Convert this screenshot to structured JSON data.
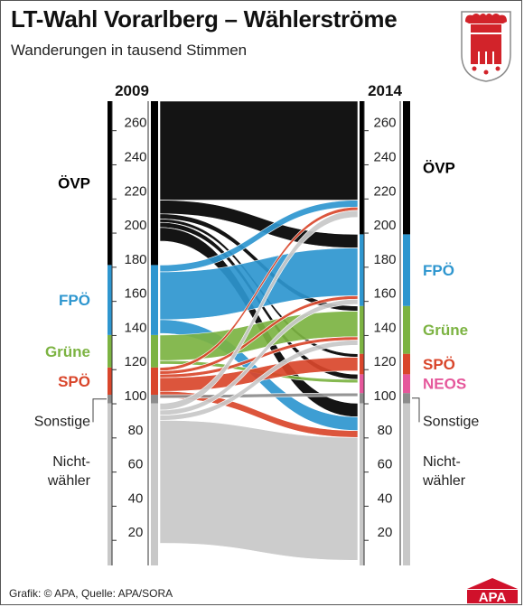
{
  "title": "LT-Wahl Vorarlberg – Wählerströme",
  "subtitle": "Wanderungen in tausend Stimmen",
  "footer": "Grafik: © APA, Quelle: APA/SORA",
  "logo_text": "APA",
  "colors": {
    "oevp": "#000000",
    "fpoe": "#2e96cf",
    "gruene": "#7cb342",
    "spoe": "#d9462b",
    "neos": "#e5579b",
    "sonstige": "#8c8c8c",
    "nichtwaehler": "#c8c8c8",
    "crest_red": "#d2232a",
    "logo_red": "#d0112b"
  },
  "chart_data": {
    "type": "sankey",
    "title": "LT-Wahl Vorarlberg – Wählerströme",
    "unit": "Wanderungen in tausend Stimmen",
    "years": [
      "2009",
      "2014"
    ],
    "axis_ticks": [
      20,
      40,
      60,
      80,
      100,
      120,
      140,
      160,
      180,
      200,
      220,
      240,
      260
    ],
    "axis_range": [
      0,
      272
    ],
    "left_stack": [
      {
        "label": "Nicht-wähler",
        "lines": [
          "Nicht-",
          "wähler"
        ],
        "from": 0,
        "to": 95,
        "color": "#c8c8c8",
        "label_color": "#222222"
      },
      {
        "label": "Sonstige",
        "lines": [
          "Sonstige"
        ],
        "from": 95,
        "to": 100,
        "color": "#8c8c8c",
        "label_color": "#222222"
      },
      {
        "label": "SPÖ",
        "lines": [
          "SPÖ"
        ],
        "from": 100,
        "to": 116,
        "color": "#d9462b",
        "label_color": "#d9462b"
      },
      {
        "label": "Grüne",
        "lines": [
          "Grüne"
        ],
        "from": 116,
        "to": 135,
        "color": "#7cb342",
        "label_color": "#7cb342"
      },
      {
        "label": "FPÖ",
        "lines": [
          "FPÖ"
        ],
        "from": 135,
        "to": 176,
        "color": "#2e96cf",
        "label_color": "#2e96cf"
      },
      {
        "label": "ÖVP",
        "lines": [
          "ÖVP"
        ],
        "from": 176,
        "to": 272,
        "color": "#000000",
        "label_color": "#000000"
      }
    ],
    "right_stack": [
      {
        "label": "Nicht-wähler",
        "lines": [
          "Nicht-",
          "wähler"
        ],
        "from": 0,
        "to": 95,
        "color": "#c8c8c8",
        "label_color": "#222222"
      },
      {
        "label": "Sonstige",
        "lines": [
          "Sonstige"
        ],
        "from": 95,
        "to": 101,
        "color": "#8c8c8c",
        "label_color": "#222222"
      },
      {
        "label": "NEOS",
        "lines": [
          "NEOS"
        ],
        "from": 101,
        "to": 112,
        "color": "#e5579b",
        "label_color": "#e5579b"
      },
      {
        "label": "SPÖ",
        "lines": [
          "SPÖ"
        ],
        "from": 112,
        "to": 124,
        "color": "#d9462b",
        "label_color": "#d9462b"
      },
      {
        "label": "Grüne",
        "lines": [
          "Grüne"
        ],
        "from": 124,
        "to": 152,
        "color": "#7cb342",
        "label_color": "#7cb342"
      },
      {
        "label": "FPÖ",
        "lines": [
          "FPÖ"
        ],
        "from": 152,
        "to": 194,
        "color": "#2e96cf",
        "label_color": "#2e96cf"
      },
      {
        "label": "ÖVP",
        "lines": [
          "ÖVP"
        ],
        "from": 194,
        "to": 272,
        "color": "#000000",
        "label_color": "#000000"
      }
    ],
    "flows": [
      {
        "from": "ÖVP",
        "to": "ÖVP",
        "value": 58
      },
      {
        "from": "ÖVP",
        "to": "FPÖ",
        "value": 8
      },
      {
        "from": "ÖVP",
        "to": "Grüne",
        "value": 3
      },
      {
        "from": "ÖVP",
        "to": "SPÖ",
        "value": 2
      },
      {
        "from": "ÖVP",
        "to": "NEOS",
        "value": 3
      },
      {
        "from": "ÖVP",
        "to": "Nicht-wähler",
        "value": 8
      },
      {
        "from": "FPÖ",
        "to": "ÖVP",
        "value": 4
      },
      {
        "from": "FPÖ",
        "to": "FPÖ",
        "value": 28
      },
      {
        "from": "FPÖ",
        "to": "Nicht-wähler",
        "value": 8
      },
      {
        "from": "Grüne",
        "to": "Grüne",
        "value": 15
      },
      {
        "from": "Grüne",
        "to": "NEOS",
        "value": 2
      },
      {
        "from": "SPÖ",
        "to": "ÖVP",
        "value": 2
      },
      {
        "from": "SPÖ",
        "to": "FPÖ",
        "value": 2
      },
      {
        "from": "SPÖ",
        "to": "Grüne",
        "value": 2
      },
      {
        "from": "SPÖ",
        "to": "SPÖ",
        "value": 8
      },
      {
        "from": "SPÖ",
        "to": "Nicht-wähler",
        "value": 4
      },
      {
        "from": "Sonstige",
        "to": "Sonstige",
        "value": 2
      },
      {
        "from": "Nicht-wähler",
        "to": "ÖVP",
        "value": 4
      },
      {
        "from": "Nicht-wähler",
        "to": "FPÖ",
        "value": 3
      },
      {
        "from": "Nicht-wähler",
        "to": "Grüne",
        "value": 3
      },
      {
        "from": "Nicht-wähler",
        "to": "Nicht-wähler",
        "value": 72
      }
    ]
  }
}
